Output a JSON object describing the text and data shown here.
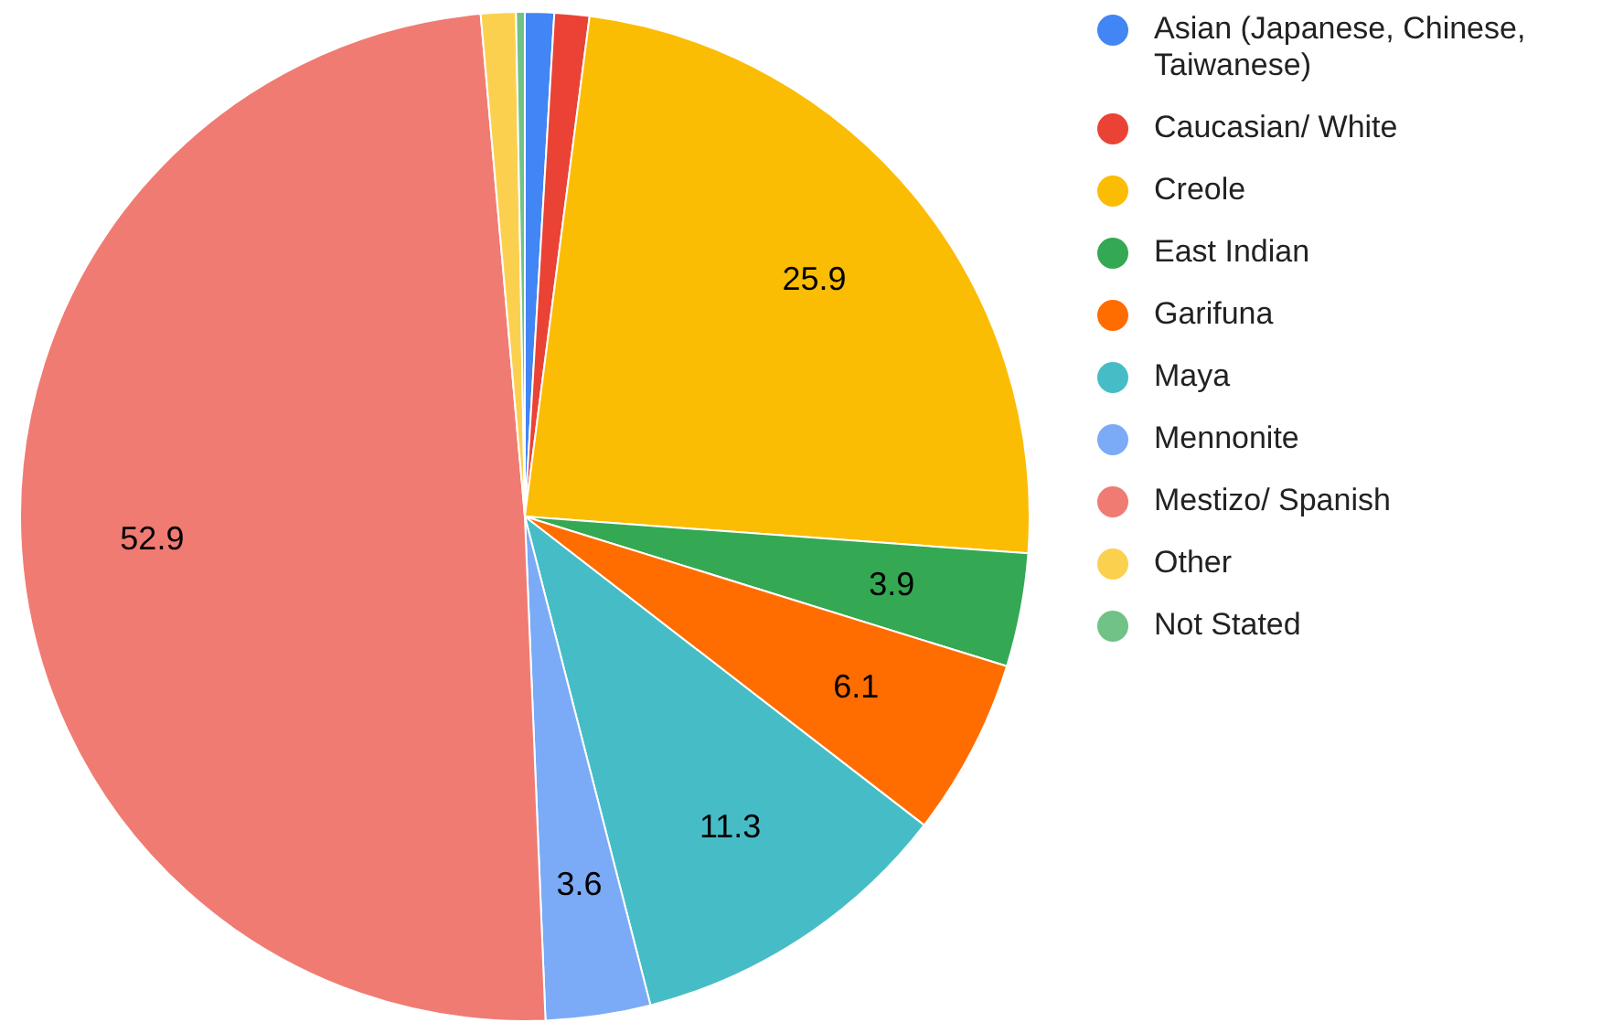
{
  "chart_data": {
    "type": "pie",
    "categories": [
      "Asian (Japanese, Chinese, Taiwanese)",
      "Caucasian/ White",
      "Creole",
      "East Indian",
      "Garifuna",
      "Maya",
      "Mennonite",
      "Mestizo/ Spanish",
      "Other",
      "Not Stated"
    ],
    "values": [
      1.0,
      1.2,
      25.9,
      3.9,
      6.1,
      11.3,
      3.6,
      52.9,
      1.2,
      0.3
    ],
    "value_labels": [
      null,
      null,
      "25.9",
      "3.9",
      "6.1",
      "11.3",
      "3.6",
      "52.9",
      null,
      null
    ],
    "colors": [
      "#4285f4",
      "#ea4335",
      "#fbbc04",
      "#34a853",
      "#ff6d01",
      "#46bdc6",
      "#7baaf7",
      "#f07b72",
      "#fcd04f",
      "#71c287"
    ],
    "legend": "right"
  }
}
